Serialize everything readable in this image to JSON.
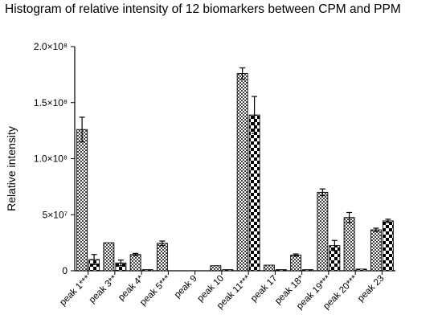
{
  "chart_data": {
    "type": "bar",
    "title": "Histogram of relative intensity of 12 biomarkers between CPM and PPM",
    "ylabel": "Relative intensity",
    "xlabel": "",
    "ylim": [
      0,
      200000000
    ],
    "yticks": [
      {
        "value": 0,
        "label": "0"
      },
      {
        "value": 50000000,
        "label": "5×10⁷"
      },
      {
        "value": 100000000,
        "label": "1.0×10⁸"
      },
      {
        "value": 150000000,
        "label": "1.5×10⁸"
      },
      {
        "value": 200000000,
        "label": "2.0×10⁸"
      }
    ],
    "categories": [
      "peak 1***",
      "peak 3**",
      "peak 4*",
      "peak 5***",
      "peak 9",
      "peak 10",
      "peak 11***",
      "peak 17",
      "peak 18*",
      "peak 19***",
      "peak 20***",
      "peak 23"
    ],
    "series": [
      {
        "pattern": "fine-check",
        "values": [
          126000000,
          25000000,
          14500000,
          24500000,
          0,
          4500000,
          176000000,
          5000000,
          14000000,
          70000000,
          47500000,
          36500000
        ],
        "errors": [
          11000000,
          0,
          1000000,
          2000000,
          0,
          0,
          5000000,
          0,
          1000000,
          3000000,
          4500000,
          1500000
        ]
      },
      {
        "pattern": "coarse-check",
        "values": [
          10000000,
          7000000,
          1000000,
          0,
          0,
          1000000,
          139000000,
          1000000,
          1000000,
          22500000,
          1500000,
          44500000
        ],
        "errors": [
          4500000,
          2500000,
          0,
          0,
          0,
          0,
          16500000,
          0,
          0,
          4500000,
          0,
          1500000
        ]
      }
    ],
    "grid": false,
    "legend": "none"
  }
}
